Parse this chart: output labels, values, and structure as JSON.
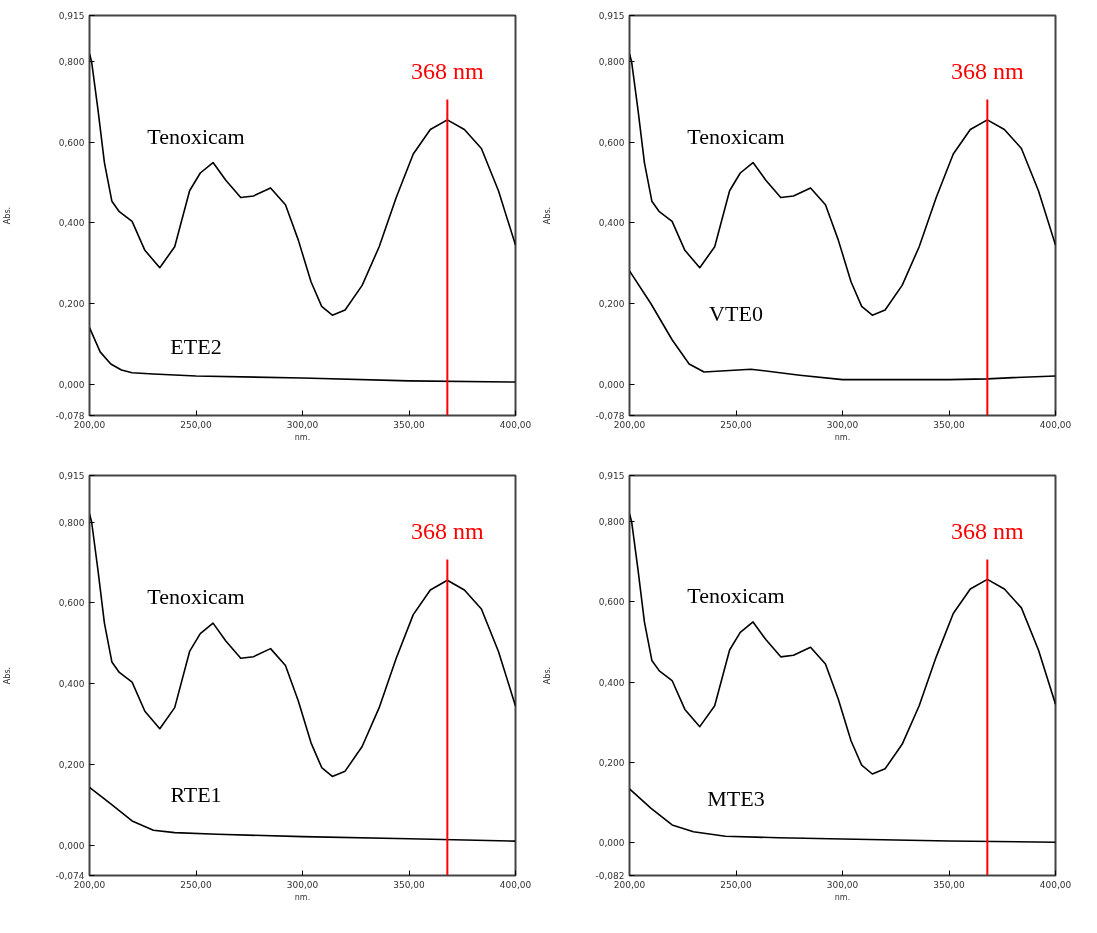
{
  "chart_data": [
    {
      "type": "line",
      "xlabel": "nm.",
      "ylabel": "Abs.",
      "xlim": [
        200,
        400
      ],
      "ylim": [
        -0.078,
        0.915
      ],
      "xticks": [
        {
          "value": 200,
          "label": "200,00"
        },
        {
          "value": 250,
          "label": "250,00"
        },
        {
          "value": 300,
          "label": "300,00"
        },
        {
          "value": 350,
          "label": "350,00"
        },
        {
          "value": 400,
          "label": "400,00"
        }
      ],
      "yticks": [
        {
          "value": -0.078,
          "label": "-0,078"
        },
        {
          "value": 0,
          "label": "0,000"
        },
        {
          "value": 0.2,
          "label": "0,200"
        },
        {
          "value": 0.4,
          "label": "0,400"
        },
        {
          "value": 0.6,
          "label": "0,600"
        },
        {
          "value": 0.8,
          "label": "0,800"
        },
        {
          "value": 0.915,
          "label": "0,915"
        }
      ],
      "series": [
        {
          "name": "Tenoxicam",
          "color": "#000000",
          "x": [
            200,
            201,
            204,
            207,
            210.5,
            214,
            220,
            226,
            233,
            240,
            247,
            252,
            258,
            264,
            271,
            277,
            285,
            292,
            298,
            304,
            309,
            314,
            320,
            328,
            336,
            344,
            352,
            360,
            368,
            376,
            384,
            392,
            400
          ],
          "values": [
            0.82,
            0.8,
            0.68,
            0.55,
            0.454,
            0.428,
            0.404,
            0.332,
            0.289,
            0.341,
            0.48,
            0.524,
            0.55,
            0.506,
            0.463,
            0.467,
            0.487,
            0.445,
            0.358,
            0.254,
            0.193,
            0.171,
            0.184,
            0.245,
            0.341,
            0.463,
            0.571,
            0.632,
            0.656,
            0.632,
            0.585,
            0.48,
            0.345
          ]
        },
        {
          "name": "ETE2",
          "color": "#000000",
          "x": [
            200,
            205,
            210,
            215,
            220,
            230,
            250,
            300,
            350,
            400
          ],
          "values": [
            0.14,
            0.08,
            0.05,
            0.035,
            0.028,
            0.025,
            0.02,
            0.015,
            0.008,
            0.005
          ]
        }
      ],
      "ref_lines": [
        {
          "axis": "x",
          "value": 368,
          "label": "368 nm",
          "color": "#ff0000"
        }
      ]
    },
    {
      "type": "line",
      "xlabel": "nm.",
      "ylabel": "Abs.",
      "xlim": [
        200,
        400
      ],
      "ylim": [
        -0.078,
        0.915
      ],
      "xticks": [
        {
          "value": 200,
          "label": "200,00"
        },
        {
          "value": 250,
          "label": "250,00"
        },
        {
          "value": 300,
          "label": "300,00"
        },
        {
          "value": 350,
          "label": "350,00"
        },
        {
          "value": 400,
          "label": "400,00"
        }
      ],
      "yticks": [
        {
          "value": -0.078,
          "label": "-0,078"
        },
        {
          "value": 0,
          "label": "0,000"
        },
        {
          "value": 0.2,
          "label": "0,200"
        },
        {
          "value": 0.4,
          "label": "0,400"
        },
        {
          "value": 0.6,
          "label": "0,600"
        },
        {
          "value": 0.8,
          "label": "0,800"
        },
        {
          "value": 0.915,
          "label": "0,915"
        }
      ],
      "series": [
        {
          "name": "Tenoxicam",
          "color": "#000000",
          "x": [
            200,
            201,
            204,
            207,
            210.5,
            214,
            220,
            226,
            233,
            240,
            247,
            252,
            258,
            264,
            271,
            277,
            285,
            292,
            298,
            304,
            309,
            314,
            320,
            328,
            336,
            344,
            352,
            360,
            368,
            376,
            384,
            392,
            400
          ],
          "values": [
            0.82,
            0.8,
            0.68,
            0.55,
            0.454,
            0.428,
            0.404,
            0.332,
            0.289,
            0.341,
            0.48,
            0.524,
            0.55,
            0.506,
            0.463,
            0.467,
            0.487,
            0.445,
            0.358,
            0.254,
            0.193,
            0.171,
            0.184,
            0.245,
            0.341,
            0.463,
            0.571,
            0.632,
            0.656,
            0.632,
            0.585,
            0.48,
            0.345
          ]
        },
        {
          "name": "VTE0",
          "color": "#000000",
          "x": [
            200,
            210,
            220,
            228,
            235,
            257,
            280,
            300,
            350,
            368,
            380,
            400
          ],
          "values": [
            0.281,
            0.2,
            0.11,
            0.05,
            0.03,
            0.037,
            0.022,
            0.011,
            0.011,
            0.013,
            0.016,
            0.02
          ]
        }
      ],
      "ref_lines": [
        {
          "axis": "x",
          "value": 368,
          "label": "368 nm",
          "color": "#ff0000"
        }
      ]
    },
    {
      "type": "line",
      "xlabel": "nm.",
      "ylabel": "Abs.",
      "xlim": [
        200,
        400
      ],
      "ylim": [
        -0.074,
        0.915
      ],
      "xticks": [
        {
          "value": 200,
          "label": "200,00"
        },
        {
          "value": 250,
          "label": "250,00"
        },
        {
          "value": 300,
          "label": "300,00"
        },
        {
          "value": 350,
          "label": "350,00"
        },
        {
          "value": 400,
          "label": "400,00"
        }
      ],
      "yticks": [
        {
          "value": -0.074,
          "label": "-0,074"
        },
        {
          "value": 0,
          "label": "0,000"
        },
        {
          "value": 0.2,
          "label": "0,200"
        },
        {
          "value": 0.4,
          "label": "0,400"
        },
        {
          "value": 0.6,
          "label": "0,600"
        },
        {
          "value": 0.8,
          "label": "0,800"
        },
        {
          "value": 0.915,
          "label": "0,915"
        }
      ],
      "series": [
        {
          "name": "Tenoxicam",
          "color": "#000000",
          "x": [
            200,
            201,
            204,
            207,
            210.5,
            214,
            220,
            226,
            233,
            240,
            247,
            252,
            258,
            264,
            271,
            277,
            285,
            292,
            298,
            304,
            309,
            314,
            320,
            328,
            336,
            344,
            352,
            360,
            368,
            376,
            384,
            392,
            400
          ],
          "values": [
            0.82,
            0.8,
            0.68,
            0.55,
            0.454,
            0.428,
            0.404,
            0.332,
            0.289,
            0.341,
            0.48,
            0.524,
            0.55,
            0.506,
            0.463,
            0.467,
            0.487,
            0.445,
            0.358,
            0.254,
            0.193,
            0.171,
            0.184,
            0.245,
            0.341,
            0.463,
            0.571,
            0.632,
            0.656,
            0.632,
            0.585,
            0.48,
            0.345
          ]
        },
        {
          "name": "RTE1",
          "color": "#000000",
          "x": [
            200,
            210,
            220,
            230,
            240,
            260,
            300,
            350,
            400
          ],
          "values": [
            0.144,
            0.103,
            0.061,
            0.038,
            0.032,
            0.028,
            0.022,
            0.017,
            0.011
          ]
        }
      ],
      "ref_lines": [
        {
          "axis": "x",
          "value": 368,
          "label": "368 nm",
          "color": "#ff0000"
        }
      ]
    },
    {
      "type": "line",
      "xlabel": "nm.",
      "ylabel": "Abs.",
      "xlim": [
        200,
        400
      ],
      "ylim": [
        -0.082,
        0.915
      ],
      "xticks": [
        {
          "value": 200,
          "label": "200,00"
        },
        {
          "value": 250,
          "label": "250,00"
        },
        {
          "value": 300,
          "label": "300,00"
        },
        {
          "value": 350,
          "label": "350,00"
        },
        {
          "value": 400,
          "label": "400,00"
        }
      ],
      "yticks": [
        {
          "value": -0.082,
          "label": "-0,082"
        },
        {
          "value": 0,
          "label": "0,000"
        },
        {
          "value": 0.2,
          "label": "0,200"
        },
        {
          "value": 0.4,
          "label": "0,400"
        },
        {
          "value": 0.6,
          "label": "0,600"
        },
        {
          "value": 0.8,
          "label": "0,800"
        },
        {
          "value": 0.915,
          "label": "0,915"
        }
      ],
      "series": [
        {
          "name": "Tenoxicam",
          "color": "#000000",
          "x": [
            200,
            201,
            204,
            207,
            210.5,
            214,
            220,
            226,
            233,
            240,
            247,
            252,
            258,
            264,
            271,
            277,
            285,
            292,
            298,
            304,
            309,
            314,
            320,
            328,
            336,
            344,
            352,
            360,
            368,
            376,
            384,
            392,
            400
          ],
          "values": [
            0.82,
            0.8,
            0.68,
            0.55,
            0.454,
            0.428,
            0.404,
            0.332,
            0.289,
            0.341,
            0.48,
            0.524,
            0.55,
            0.506,
            0.463,
            0.467,
            0.487,
            0.445,
            0.358,
            0.254,
            0.193,
            0.171,
            0.184,
            0.245,
            0.341,
            0.463,
            0.571,
            0.632,
            0.656,
            0.632,
            0.585,
            0.48,
            0.345
          ]
        },
        {
          "name": "MTE3",
          "color": "#000000",
          "x": [
            200,
            210,
            220,
            230,
            245,
            270,
            300,
            350,
            400
          ],
          "values": [
            0.134,
            0.086,
            0.044,
            0.027,
            0.016,
            0.012,
            0.009,
            0.004,
            0.001
          ]
        }
      ],
      "ref_lines": [
        {
          "axis": "x",
          "value": 368,
          "label": "368 nm",
          "color": "#ff0000"
        }
      ]
    }
  ]
}
